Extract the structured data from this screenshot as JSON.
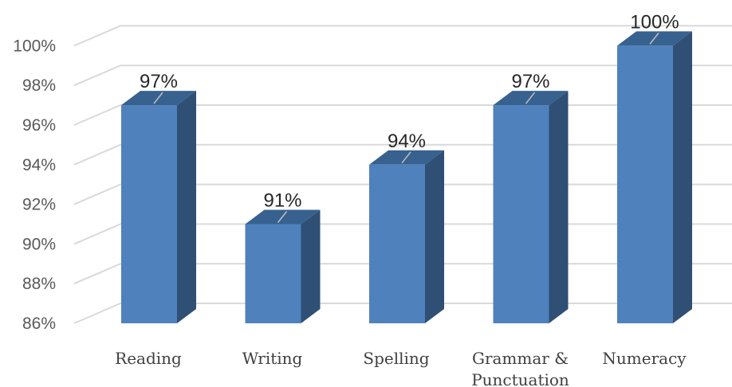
{
  "chart_data": {
    "type": "bar",
    "style": "3d-column",
    "categories": [
      "Reading",
      "Writing",
      "Spelling",
      "Grammar & Punctuation",
      "Numeracy"
    ],
    "category_lines": [
      [
        "Reading"
      ],
      [
        "Writing"
      ],
      [
        "Spelling"
      ],
      [
        "Grammar &",
        "Punctuation"
      ],
      [
        "Numeracy"
      ]
    ],
    "values": [
      97,
      91,
      94,
      97,
      100
    ],
    "data_labels": [
      "97%",
      "91%",
      "94%",
      "97%",
      "100%"
    ],
    "y_ticks": [
      "86%",
      "88%",
      "90%",
      "92%",
      "94%",
      "96%",
      "98%",
      "100%"
    ],
    "ylim": [
      86,
      101
    ],
    "grid": true,
    "legend": "none",
    "colors": {
      "bar_front": "#4F81BD",
      "bar_side": "#2F4F74",
      "bar_top": "#37618F",
      "grid": "#D9D9D9"
    }
  }
}
